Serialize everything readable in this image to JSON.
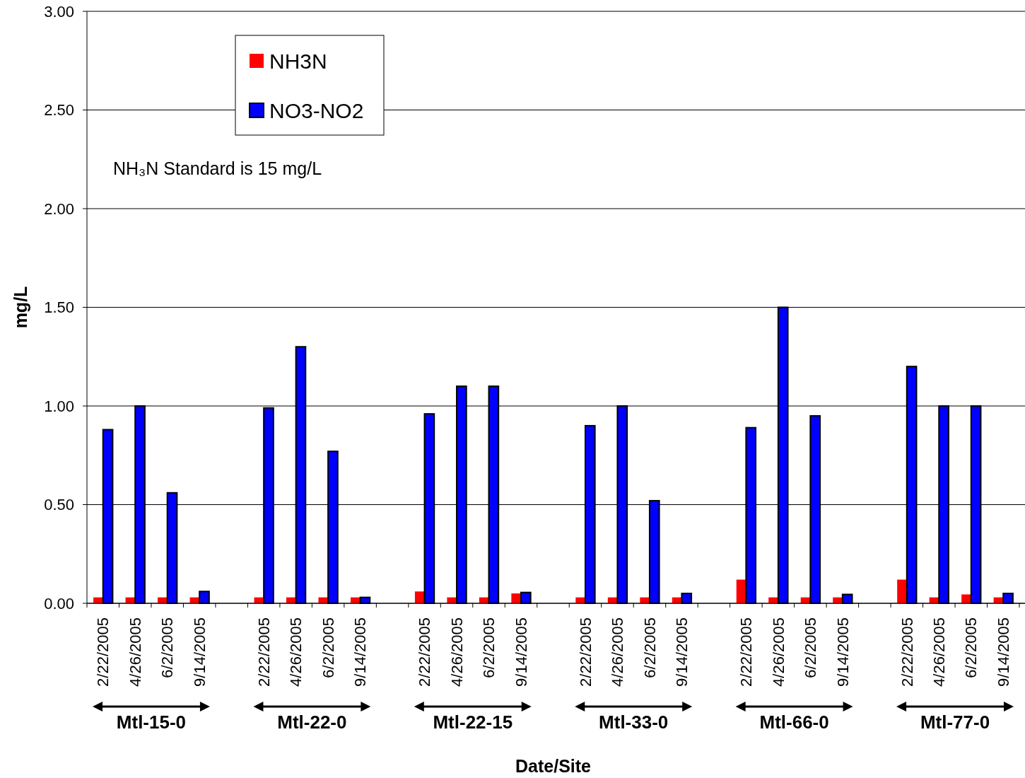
{
  "chart_data": {
    "type": "bar",
    "xlabel": "Date/Site",
    "ylabel": "mg/L",
    "categories": [
      "2/22/2005",
      "4/26/2005",
      "6/2/2005",
      "9/14/2005",
      null,
      "2/22/2005",
      "4/26/2005",
      "6/2/2005",
      "9/14/2005",
      null,
      "2/22/2005",
      "4/26/2005",
      "6/2/2005",
      "9/14/2005",
      null,
      "2/22/2005",
      "4/26/2005",
      "6/2/2005",
      "9/14/2005",
      null,
      "2/22/2005",
      "4/26/2005",
      "6/2/2005",
      "9/14/2005",
      null,
      "2/22/2005",
      "4/26/2005",
      "6/2/2005",
      "9/14/2005"
    ],
    "series": [
      {
        "name": "NH3N",
        "color": "#ff0000",
        "values": [
          0.03,
          0.03,
          0.03,
          0.03,
          null,
          0.03,
          0.03,
          0.03,
          0.03,
          null,
          0.06,
          0.03,
          0.03,
          0.05,
          null,
          0.03,
          0.03,
          0.03,
          0.03,
          null,
          0.12,
          0.03,
          0.03,
          0.03,
          null,
          0.12,
          0.03,
          0.045,
          0.03
        ]
      },
      {
        "name": "NO3-NO2",
        "color": "#0000ff",
        "values": [
          0.88,
          1.0,
          0.56,
          0.06,
          null,
          0.99,
          1.3,
          0.77,
          0.03,
          null,
          0.96,
          1.1,
          1.1,
          0.055,
          null,
          0.9,
          1.0,
          0.52,
          0.05,
          null,
          0.89,
          1.5,
          0.95,
          0.045,
          null,
          1.2,
          1.0,
          1.0,
          0.05
        ]
      }
    ],
    "ylim": [
      0,
      3
    ],
    "yticks": [
      {
        "value": 0,
        "label": "0.00"
      },
      {
        "value": 0.5,
        "label": "0.50"
      },
      {
        "value": 1,
        "label": "1.00"
      },
      {
        "value": 1.5,
        "label": "1.50"
      },
      {
        "value": 2,
        "label": "2.00"
      },
      {
        "value": 2.5,
        "label": "2.50"
      },
      {
        "value": 3,
        "label": "3.00"
      }
    ],
    "grid": "y",
    "legend": "top left",
    "annotations": [
      "NH₃N Standard is 15 mg/L",
      "Mtl-15-0",
      "Mtl-22-0",
      "Mtl-22-15",
      "Mtl-33-0",
      "Mtl-66-0",
      "Mtl-77-0"
    ]
  }
}
